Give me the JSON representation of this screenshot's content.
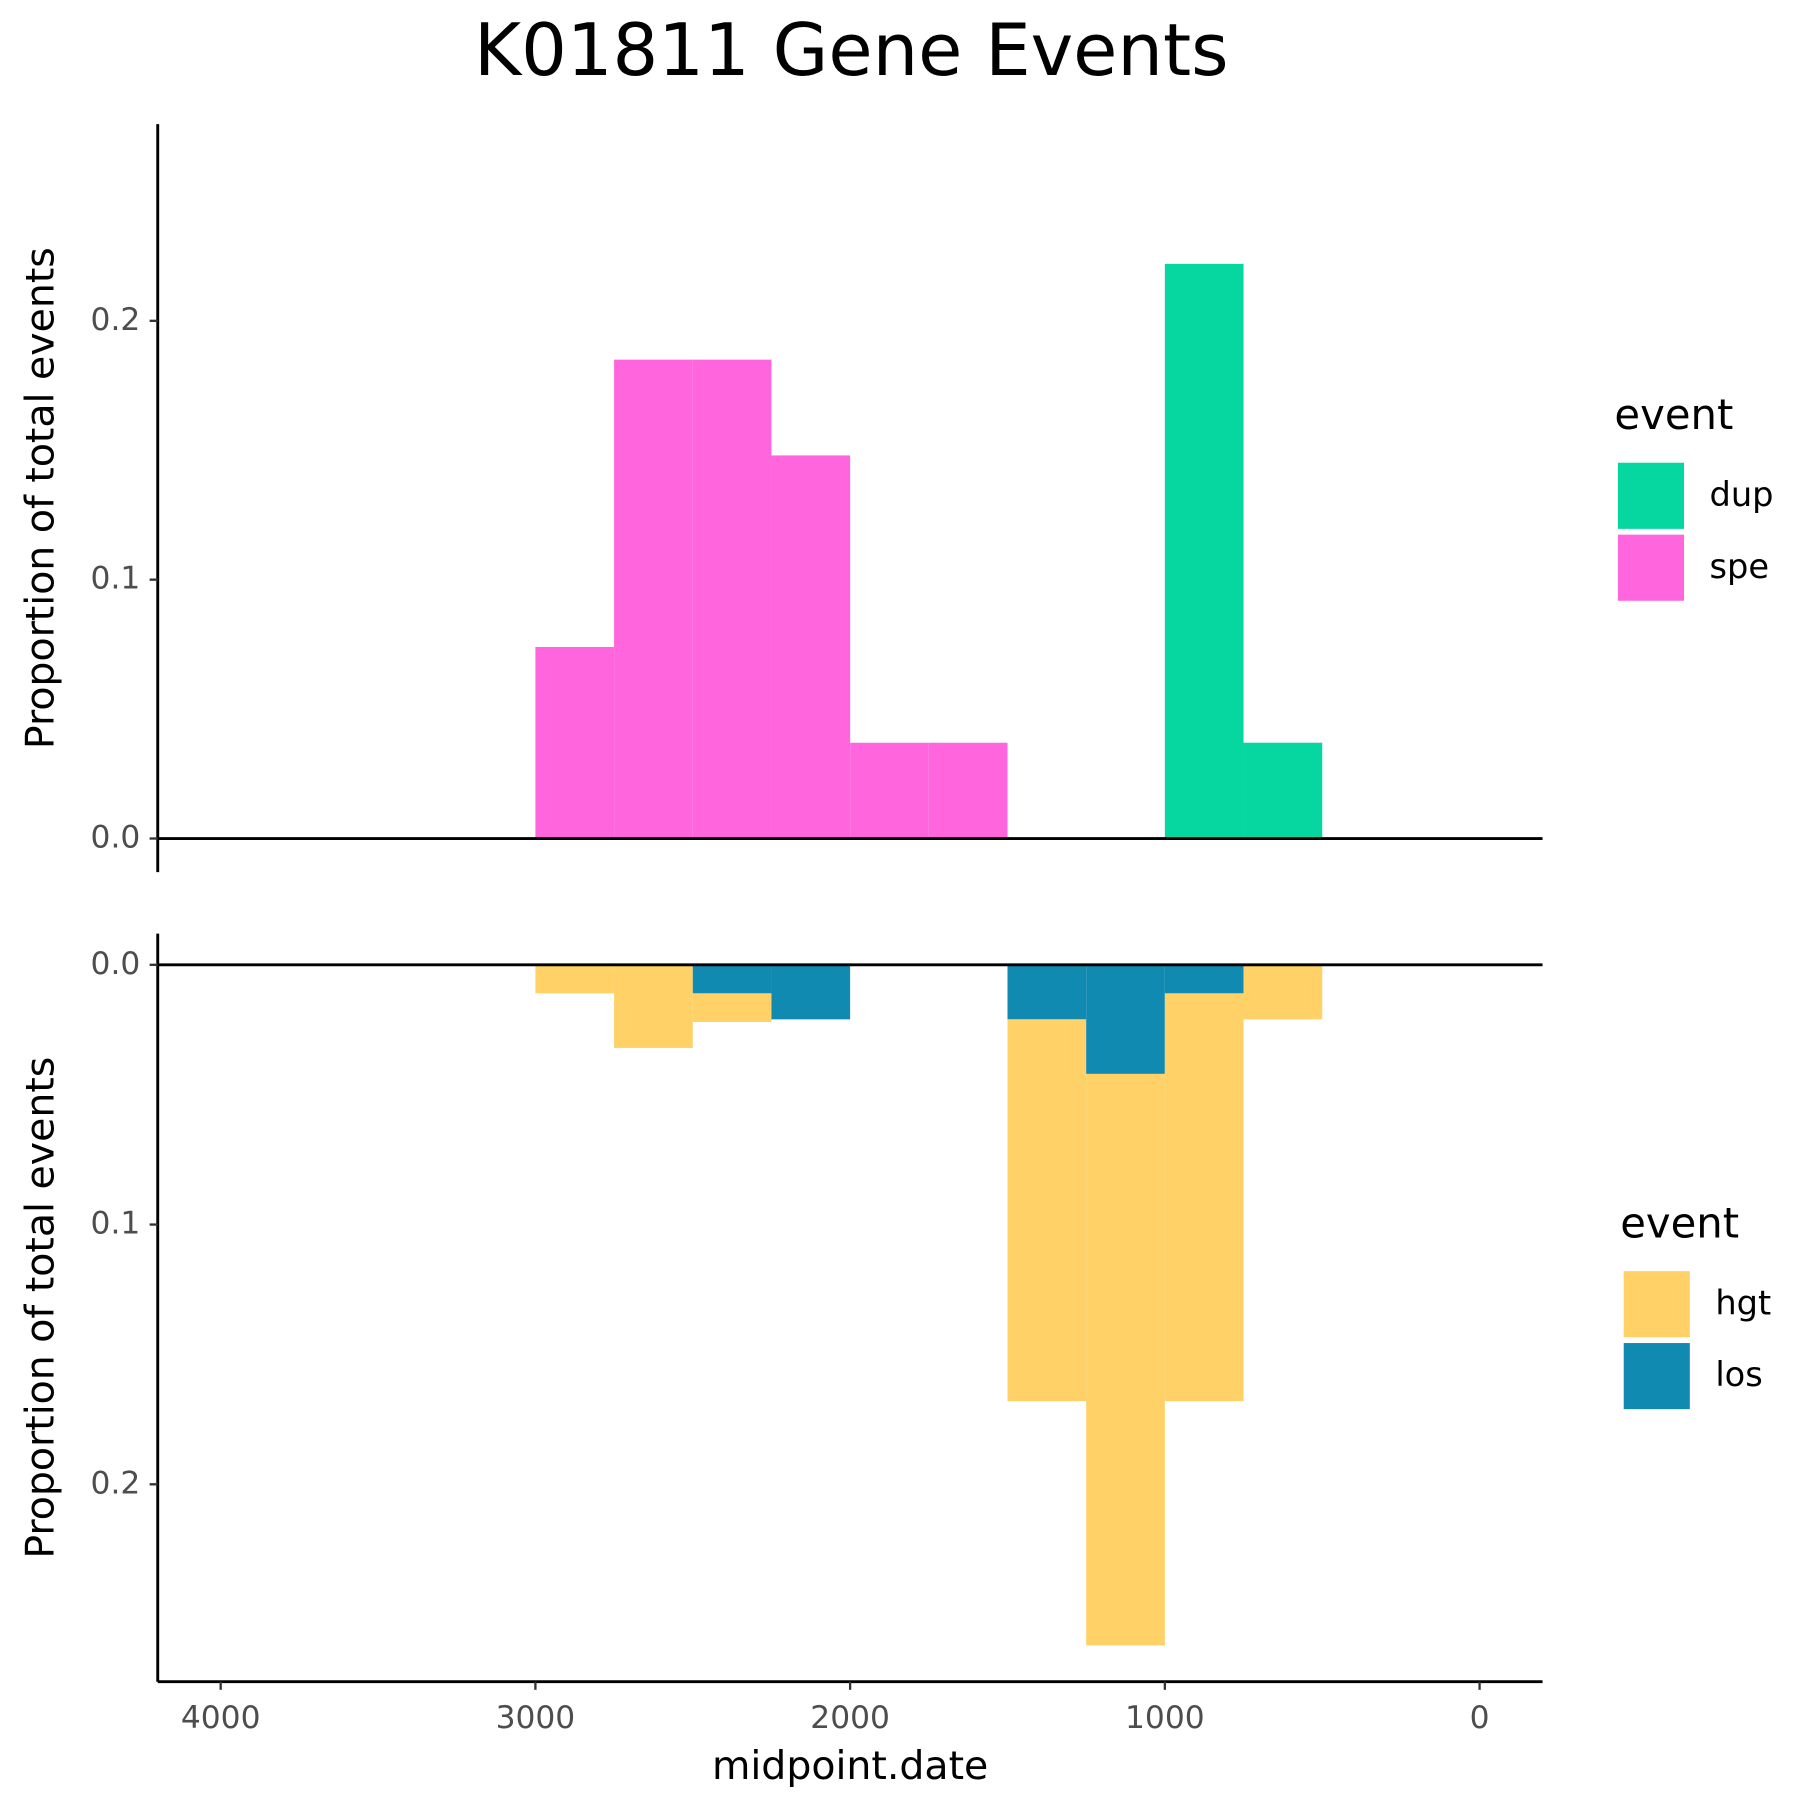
{
  "chart_data": [
    {
      "type": "histogram",
      "title": "K01811 Gene Events",
      "ylabel": "Proportion of total events",
      "legend_title": "event",
      "bins": [
        3000,
        2750,
        2500,
        2250,
        2000,
        1750,
        1500,
        1250,
        1000,
        750,
        500
      ],
      "series": [
        {
          "name": "dup",
          "color": "#06d6a0",
          "values": [
            0,
            0,
            0,
            0,
            0,
            0,
            0,
            0,
            0.222,
            0.037
          ]
        },
        {
          "name": "spe",
          "color": "#ff66de",
          "values": [
            0.074,
            0.185,
            0.185,
            0.148,
            0.037,
            0.037,
            0,
            0,
            0,
            0
          ]
        }
      ],
      "xlim": [
        4200,
        -200
      ],
      "ylim": [
        -0.013,
        0.276
      ],
      "y_reversed": false,
      "yticks": [
        {
          "value": 0,
          "label": "0.0"
        },
        {
          "value": 0.1,
          "label": "0.1"
        },
        {
          "value": 0.2,
          "label": "0.2"
        }
      ]
    },
    {
      "type": "histogram",
      "ylabel": "Proportion of total events",
      "xlabel": "midpoint.date",
      "legend_title": "event",
      "bins": [
        3000,
        2750,
        2500,
        2250,
        2000,
        1750,
        1500,
        1250,
        1000,
        750,
        500
      ],
      "series": [
        {
          "name": "hgt",
          "color": "#ffd166",
          "values": [
            0.011,
            0.032,
            0.011,
            0,
            0,
            0,
            0.147,
            0.22,
            0.157,
            0.021
          ]
        },
        {
          "name": "los",
          "color": "#118ab2",
          "values": [
            0,
            0,
            0.011,
            0.021,
            0,
            0,
            0.021,
            0.042,
            0.011,
            0
          ]
        }
      ],
      "xlim": [
        4200,
        -200
      ],
      "ylim": [
        -0.012,
        0.276
      ],
      "y_reversed": true,
      "xticks": [
        4000,
        3000,
        2000,
        1000,
        0
      ],
      "yticks": [
        {
          "value": 0,
          "label": "0.0"
        },
        {
          "value": 0.1,
          "label": "0.1"
        },
        {
          "value": 0.2,
          "label": "0.2"
        }
      ]
    }
  ]
}
